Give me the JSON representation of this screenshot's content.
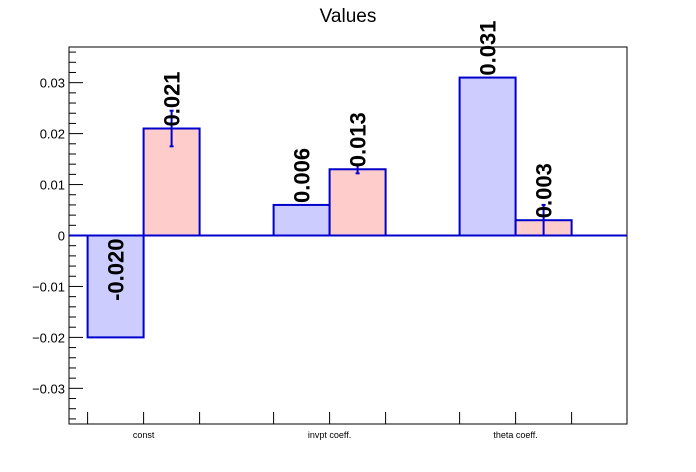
{
  "chart_data": {
    "type": "bar",
    "title": "Values",
    "categories": [
      "const",
      "invpt coeff.",
      "theta coeff."
    ],
    "series": [
      {
        "values": [
          -0.02,
          0.006,
          0.031
        ],
        "labels": [
          "-0.020",
          "0.006",
          "0.031"
        ],
        "errors": [
          0,
          0,
          0
        ],
        "fill": "#ccccff",
        "stroke": "#0000cc"
      },
      {
        "values": [
          0.021,
          0.013,
          0.003
        ],
        "labels": [
          "0.021",
          "0.013",
          "0.003"
        ],
        "errors": [
          0.0035,
          0.0008,
          0.003
        ],
        "fill": "#ffcccc",
        "stroke": "#0000cc"
      }
    ],
    "ylim": [
      -0.037,
      0.037
    ],
    "yticks": [
      -0.03,
      -0.02,
      -0.01,
      0,
      0.01,
      0.02,
      0.03
    ],
    "ytick_labels": [
      "−0.03",
      "−0.02",
      "−0.01",
      "0",
      "0.01",
      "0.02",
      "0.03"
    ],
    "grid": false,
    "xlabel": "",
    "ylabel": ""
  }
}
